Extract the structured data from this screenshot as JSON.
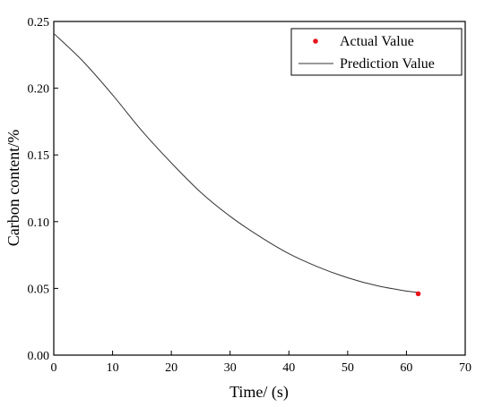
{
  "chart_data": {
    "type": "line",
    "title": "",
    "xlabel": "Time/ (s)",
    "ylabel": "Carbon content/%",
    "xlim": [
      0,
      70
    ],
    "ylim": [
      0,
      0.25
    ],
    "x_ticks": [
      0,
      10,
      20,
      30,
      40,
      50,
      60,
      70
    ],
    "y_ticks": [
      0,
      0.05,
      0.1,
      0.15,
      0.2,
      0.25
    ],
    "x_tick_labels": [
      "0",
      "10",
      "20",
      "30",
      "40",
      "50",
      "60",
      "70"
    ],
    "y_tick_labels": [
      "0.00",
      "0.05",
      "0.10",
      "0.15",
      "0.20",
      "0.25"
    ],
    "grid": false,
    "legend_position": "top-right",
    "series": [
      {
        "name": "Actual Value",
        "type": "scatter",
        "color": "#e8161b",
        "x": [
          62
        ],
        "y": [
          0.046
        ]
      },
      {
        "name": "Prediction Value",
        "type": "line",
        "color": "#333333",
        "x": [
          0,
          5,
          10,
          15,
          20,
          25,
          30,
          35,
          40,
          45,
          50,
          55,
          60,
          62
        ],
        "y": [
          0.241,
          0.22,
          0.195,
          0.168,
          0.144,
          0.122,
          0.104,
          0.089,
          0.076,
          0.066,
          0.058,
          0.052,
          0.048,
          0.047
        ]
      }
    ]
  }
}
